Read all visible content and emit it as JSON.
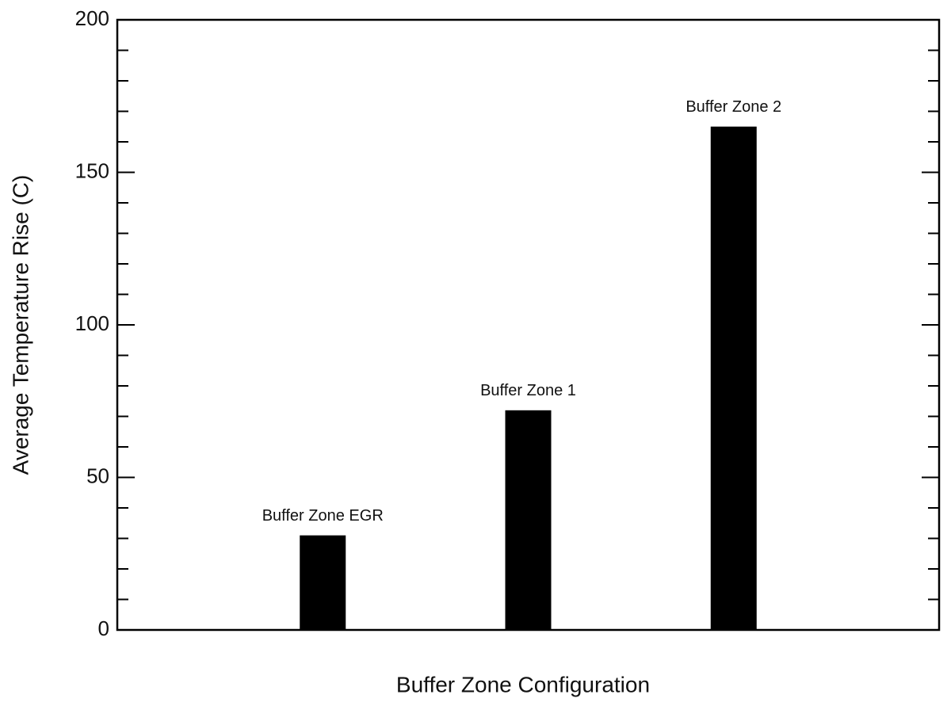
{
  "chart_data": {
    "type": "bar",
    "xlabel": "Buffer Zone Configuration",
    "ylabel": "Average Temperature Rise (C)",
    "categories": [
      "Buffer Zone EGR",
      "Buffer Zone 1",
      "Buffer Zone 2"
    ],
    "values": [
      31,
      72,
      165
    ],
    "color": "#000000",
    "ylim": [
      0,
      200
    ],
    "yticks": [
      0,
      50,
      100,
      150,
      200
    ],
    "yticks_minor": [
      10,
      20,
      30,
      40,
      60,
      70,
      80,
      90,
      110,
      120,
      130,
      140,
      160,
      170,
      180,
      190
    ]
  }
}
